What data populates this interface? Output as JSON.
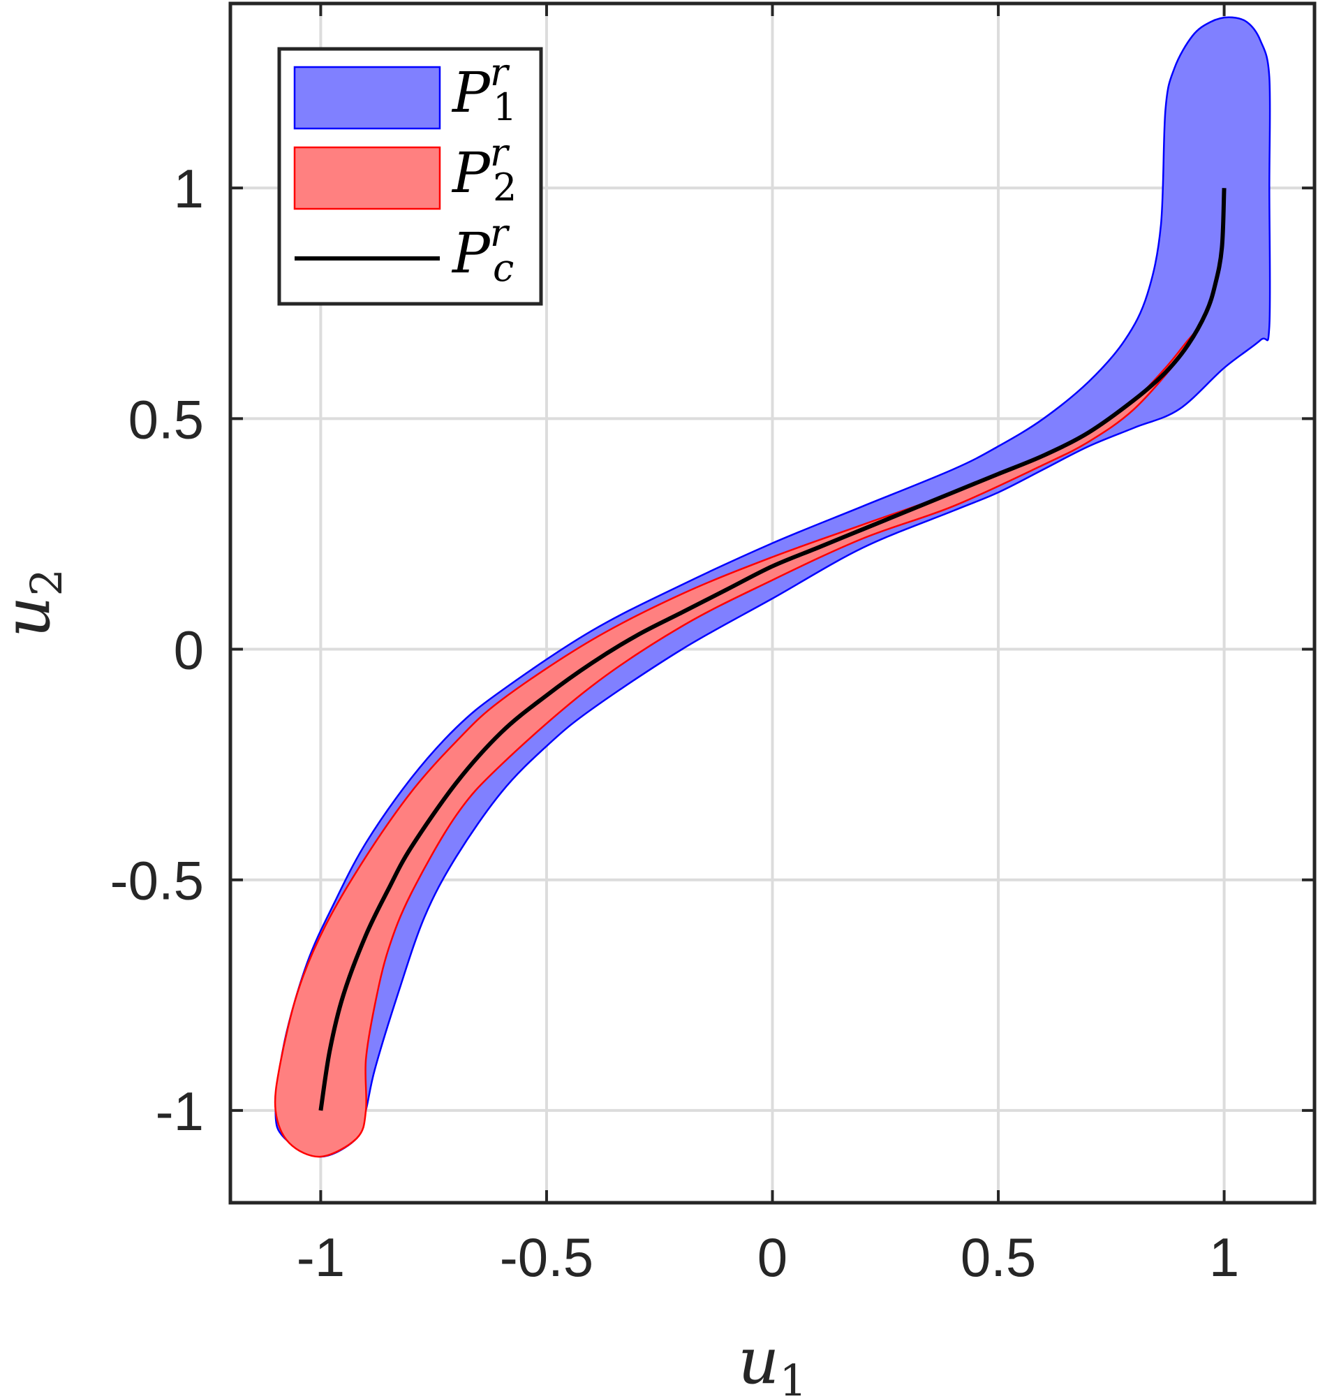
{
  "chart_data": {
    "type": "area",
    "xlabel": {
      "base": "u",
      "sub": "1"
    },
    "ylabel": {
      "base": "u",
      "sub": "2"
    },
    "xlim": [
      -1.2,
      1.2
    ],
    "ylim": [
      -1.2,
      1.4
    ],
    "xticks": [
      -1,
      -0.5,
      0,
      0.5,
      1
    ],
    "xtick_labels": [
      "-1",
      "-0.5",
      "0",
      "0.5",
      "1"
    ],
    "yticks": [
      -1,
      -0.5,
      0,
      0.5,
      1
    ],
    "ytick_labels": [
      "-1",
      "-0.5",
      "0",
      "0.5",
      "1"
    ],
    "grid": true,
    "legend_position": "top-left",
    "series": [
      {
        "name": {
          "base": "P",
          "sup": "r",
          "sub": "1"
        },
        "kind": "region",
        "fill": "#8080ff",
        "stroke": "#0000ff",
        "boundary": [
          [
            -1.0,
            -1.1
          ],
          [
            -1.08,
            -1.06
          ],
          [
            -1.1,
            -1.0
          ],
          [
            -1.08,
            -0.85
          ],
          [
            -1.03,
            -0.68
          ],
          [
            -0.97,
            -0.55
          ],
          [
            -0.9,
            -0.42
          ],
          [
            -0.8,
            -0.28
          ],
          [
            -0.7,
            -0.17
          ],
          [
            -0.6,
            -0.09
          ],
          [
            -0.4,
            0.04
          ],
          [
            -0.2,
            0.14
          ],
          [
            0.0,
            0.23
          ],
          [
            0.2,
            0.31
          ],
          [
            0.4,
            0.39
          ],
          [
            0.5,
            0.44
          ],
          [
            0.6,
            0.5
          ],
          [
            0.7,
            0.58
          ],
          [
            0.78,
            0.67
          ],
          [
            0.83,
            0.77
          ],
          [
            0.86,
            0.92
          ],
          [
            0.87,
            1.17
          ],
          [
            0.89,
            1.26
          ],
          [
            0.93,
            1.33
          ],
          [
            0.97,
            1.36
          ],
          [
            1.01,
            1.37
          ],
          [
            1.05,
            1.36
          ],
          [
            1.08,
            1.32
          ],
          [
            1.1,
            1.24
          ],
          [
            1.1,
            1.0
          ],
          [
            1.1,
            0.7
          ],
          [
            1.08,
            0.67
          ],
          [
            1.0,
            0.61
          ],
          [
            0.9,
            0.52
          ],
          [
            0.8,
            0.48
          ],
          [
            0.7,
            0.44
          ],
          [
            0.6,
            0.39
          ],
          [
            0.5,
            0.34
          ],
          [
            0.4,
            0.3
          ],
          [
            0.2,
            0.22
          ],
          [
            0.0,
            0.11
          ],
          [
            -0.2,
            -0.0
          ],
          [
            -0.4,
            -0.13
          ],
          [
            -0.5,
            -0.21
          ],
          [
            -0.6,
            -0.31
          ],
          [
            -0.7,
            -0.45
          ],
          [
            -0.77,
            -0.58
          ],
          [
            -0.83,
            -0.75
          ],
          [
            -0.88,
            -0.91
          ],
          [
            -0.9,
            -1.0
          ],
          [
            -0.92,
            -1.06
          ]
        ]
      },
      {
        "name": {
          "base": "P",
          "sup": "r",
          "sub": "2"
        },
        "kind": "region",
        "fill": "#ff8080",
        "stroke": "#ff0000",
        "boundary": [
          [
            -1.0,
            -1.1
          ],
          [
            -1.07,
            -1.07
          ],
          [
            -1.1,
            -1.0
          ],
          [
            -1.09,
            -0.9
          ],
          [
            -1.05,
            -0.74
          ],
          [
            -0.99,
            -0.6
          ],
          [
            -0.9,
            -0.45
          ],
          [
            -0.8,
            -0.31
          ],
          [
            -0.7,
            -0.2
          ],
          [
            -0.6,
            -0.11
          ],
          [
            -0.4,
            0.02
          ],
          [
            -0.2,
            0.12
          ],
          [
            0.0,
            0.2
          ],
          [
            0.2,
            0.27
          ],
          [
            0.4,
            0.34
          ],
          [
            0.6,
            0.42
          ],
          [
            0.7,
            0.47
          ],
          [
            0.8,
            0.54
          ],
          [
            0.87,
            0.61
          ],
          [
            0.92,
            0.67
          ],
          [
            0.94,
            0.69
          ],
          [
            0.9,
            0.63
          ],
          [
            0.8,
            0.52
          ],
          [
            0.7,
            0.45
          ],
          [
            0.6,
            0.4
          ],
          [
            0.4,
            0.31
          ],
          [
            0.2,
            0.24
          ],
          [
            0.0,
            0.15
          ],
          [
            -0.2,
            0.05
          ],
          [
            -0.4,
            -0.08
          ],
          [
            -0.6,
            -0.25
          ],
          [
            -0.7,
            -0.36
          ],
          [
            -0.8,
            -0.53
          ],
          [
            -0.85,
            -0.65
          ],
          [
            -0.88,
            -0.77
          ],
          [
            -0.9,
            -0.89
          ],
          [
            -0.9,
            -1.0
          ],
          [
            -0.92,
            -1.06
          ]
        ]
      },
      {
        "name": {
          "base": "P",
          "sup": "r",
          "sub": "c"
        },
        "kind": "line",
        "stroke": "#000000",
        "points": [
          [
            -1.0,
            -1.0
          ],
          [
            -0.98,
            -0.87
          ],
          [
            -0.95,
            -0.75
          ],
          [
            -0.9,
            -0.62
          ],
          [
            -0.85,
            -0.52
          ],
          [
            -0.8,
            -0.43
          ],
          [
            -0.7,
            -0.29
          ],
          [
            -0.6,
            -0.18
          ],
          [
            -0.5,
            -0.1
          ],
          [
            -0.4,
            -0.03
          ],
          [
            -0.3,
            0.03
          ],
          [
            -0.2,
            0.08
          ],
          [
            -0.1,
            0.13
          ],
          [
            0.0,
            0.18
          ],
          [
            0.1,
            0.22
          ],
          [
            0.2,
            0.26
          ],
          [
            0.3,
            0.3
          ],
          [
            0.4,
            0.34
          ],
          [
            0.5,
            0.38
          ],
          [
            0.6,
            0.42
          ],
          [
            0.7,
            0.47
          ],
          [
            0.8,
            0.54
          ],
          [
            0.87,
            0.6
          ],
          [
            0.92,
            0.66
          ],
          [
            0.96,
            0.73
          ],
          [
            0.98,
            0.79
          ],
          [
            0.995,
            0.87
          ],
          [
            1.0,
            1.0
          ]
        ]
      }
    ]
  }
}
